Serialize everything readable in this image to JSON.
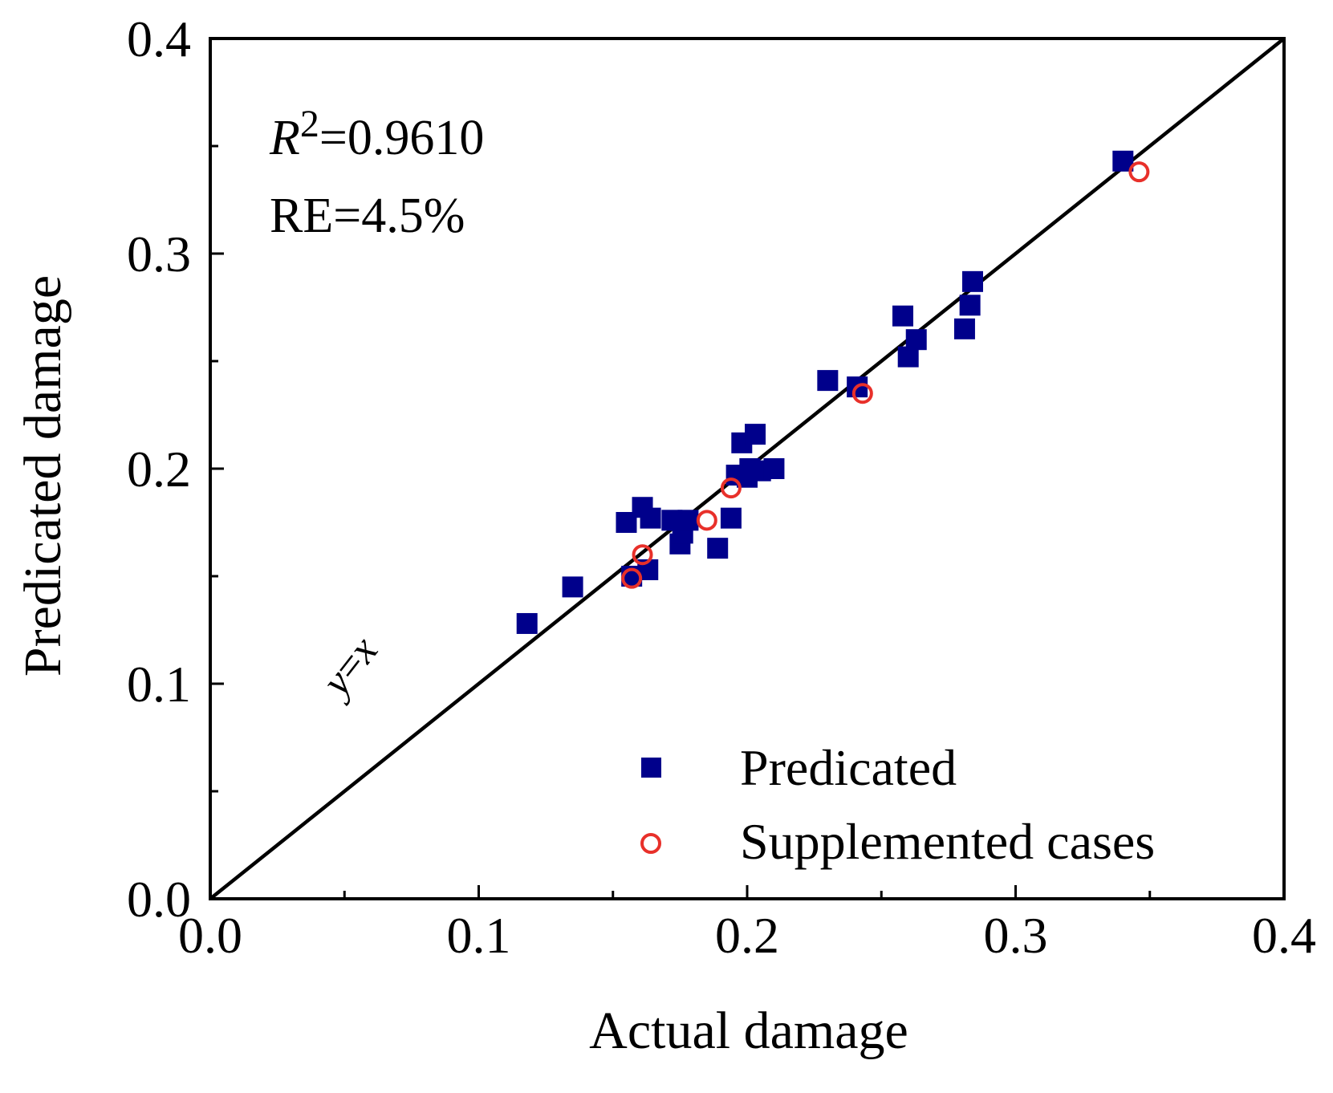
{
  "chart_data": {
    "type": "scatter",
    "title": "",
    "xlabel": "Actual damage",
    "ylabel": "Predicated damage",
    "xlim": [
      0,
      0.4
    ],
    "ylim": [
      0,
      0.4
    ],
    "x_ticks": [
      "0.0",
      "0.1",
      "0.2",
      "0.3",
      "0.4"
    ],
    "y_ticks": [
      "0.0",
      "0.1",
      "0.2",
      "0.3",
      "0.4"
    ],
    "tick_values": [
      0,
      0.1,
      0.2,
      0.3,
      0.4
    ],
    "minor_tick_values": [
      0.05,
      0.15,
      0.25,
      0.35
    ],
    "reference_line": {
      "label_y": "y",
      "label_eq": "=",
      "label_x": "x"
    },
    "annotations": {
      "r2_symbol": "R",
      "r2_exp": "2",
      "r2_value": "=0.9610",
      "re": "RE=4.5%"
    },
    "legend_position": "bottom-right",
    "series": [
      {
        "name": "Predicated",
        "marker": "square",
        "color": "#00008B",
        "points": [
          [
            0.118,
            0.128
          ],
          [
            0.135,
            0.145
          ],
          [
            0.155,
            0.175
          ],
          [
            0.157,
            0.15
          ],
          [
            0.161,
            0.182
          ],
          [
            0.163,
            0.153
          ],
          [
            0.164,
            0.177
          ],
          [
            0.172,
            0.176
          ],
          [
            0.175,
            0.165
          ],
          [
            0.176,
            0.17
          ],
          [
            0.178,
            0.176
          ],
          [
            0.189,
            0.163
          ],
          [
            0.194,
            0.177
          ],
          [
            0.196,
            0.197
          ],
          [
            0.198,
            0.212
          ],
          [
            0.2,
            0.196
          ],
          [
            0.201,
            0.2
          ],
          [
            0.203,
            0.216
          ],
          [
            0.205,
            0.199
          ],
          [
            0.21,
            0.2
          ],
          [
            0.23,
            0.241
          ],
          [
            0.241,
            0.238
          ],
          [
            0.258,
            0.271
          ],
          [
            0.26,
            0.252
          ],
          [
            0.263,
            0.26
          ],
          [
            0.281,
            0.265
          ],
          [
            0.283,
            0.276
          ],
          [
            0.284,
            0.287
          ],
          [
            0.34,
            0.343
          ]
        ]
      },
      {
        "name": "Supplemented cases",
        "marker": "circle-open",
        "color": "#E8302A",
        "points": [
          [
            0.157,
            0.149
          ],
          [
            0.161,
            0.16
          ],
          [
            0.185,
            0.176
          ],
          [
            0.194,
            0.191
          ],
          [
            0.243,
            0.235
          ],
          [
            0.346,
            0.338
          ]
        ]
      }
    ]
  }
}
